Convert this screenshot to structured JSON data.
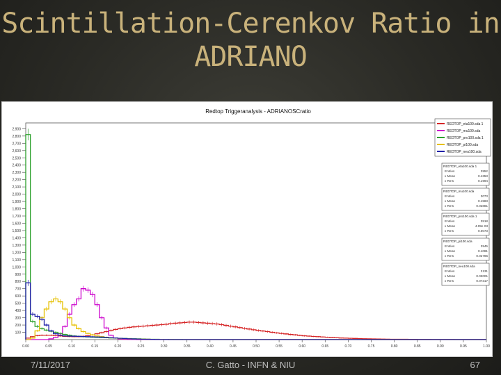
{
  "slide": {
    "title_line1": "Scintillation-Cerenkov Ratio in",
    "title_line2": "ADRIANO",
    "footer_date": "7/11/2017",
    "footer_author": "C. Gatto - INFN & NIU",
    "page_number": "67"
  },
  "chart_data": {
    "type": "line",
    "title": "Redtop Triggeranalysis - ADRIANOSCratio",
    "xlim": [
      0,
      1.0
    ],
    "ylim": [
      0,
      2980
    ],
    "x_ticks": [
      "0.00",
      "0.05",
      "0.10",
      "0.15",
      "0.20",
      "0.25",
      "0.30",
      "0.35",
      "0.40",
      "0.45",
      "0.50",
      "0.55",
      "0.60",
      "0.65",
      "0.70",
      "0.75",
      "0.80",
      "0.85",
      "0.90",
      "0.95",
      "1.00"
    ],
    "y_ticks": [
      "100",
      "200",
      "300",
      "400",
      "500",
      "600",
      "700",
      "800",
      "900",
      "1,000",
      "1,100",
      "1,200",
      "1,300",
      "1,400",
      "1,500",
      "1,600",
      "1,700",
      "1,800",
      "1,900",
      "2,000",
      "2,100",
      "2,200",
      "2,300",
      "2,400",
      "2,500",
      "2,600",
      "2,700",
      "2,800",
      "2,900"
    ],
    "x": [
      0.005,
      0.015,
      0.025,
      0.035,
      0.045,
      0.055,
      0.065,
      0.075,
      0.085,
      0.095,
      0.105,
      0.115,
      0.125,
      0.135,
      0.145,
      0.155,
      0.165,
      0.175,
      0.185,
      0.195,
      0.205,
      0.215,
      0.225,
      0.235,
      0.245,
      0.255,
      0.265,
      0.275,
      0.285,
      0.295,
      0.305,
      0.315,
      0.325,
      0.335,
      0.345,
      0.355,
      0.365,
      0.375,
      0.385,
      0.395,
      0.405,
      0.415,
      0.425,
      0.435,
      0.445,
      0.455,
      0.465,
      0.475,
      0.485,
      0.495,
      0.505,
      0.515,
      0.525,
      0.535,
      0.545,
      0.555,
      0.565,
      0.575,
      0.585,
      0.595,
      0.605,
      0.615,
      0.625,
      0.635,
      0.645,
      0.655,
      0.665,
      0.675,
      0.685,
      0.695,
      0.705,
      0.715,
      0.725,
      0.735,
      0.745,
      0.755,
      0.765,
      0.775,
      0.785,
      0.795,
      0.805,
      0.815,
      0.825,
      0.835,
      0.845,
      0.855,
      0.865,
      0.875,
      0.885,
      0.895,
      0.905,
      0.915,
      0.925,
      0.935,
      0.945,
      0.955,
      0.965,
      0.975,
      0.985,
      0.995
    ],
    "series": [
      {
        "name": "REDTOP_eta100.sda 1",
        "color": "#d62728",
        "values": [
          20,
          40,
          55,
          60,
          60,
          60,
          55,
          50,
          45,
          42,
          40,
          40,
          45,
          55,
          65,
          80,
          95,
          110,
          125,
          140,
          150,
          160,
          168,
          175,
          180,
          185,
          190,
          195,
          200,
          205,
          210,
          220,
          225,
          230,
          235,
          240,
          240,
          235,
          230,
          225,
          220,
          215,
          205,
          195,
          185,
          175,
          165,
          155,
          145,
          135,
          125,
          118,
          110,
          100,
          92,
          85,
          78,
          70,
          65,
          58,
          52,
          48,
          43,
          40,
          36,
          32,
          28,
          25,
          22,
          20,
          18,
          16,
          14,
          12,
          10,
          9,
          8,
          7,
          6,
          5,
          5,
          4,
          4,
          3,
          3,
          2,
          2,
          2,
          1,
          1,
          1,
          1,
          1,
          0,
          0,
          0,
          0,
          0,
          0,
          0
        ]
      },
      {
        "name": "REDTOP_mu100.sda",
        "color": "#cc00cc",
        "values": [
          0,
          0,
          0,
          0,
          0,
          10,
          30,
          80,
          180,
          350,
          480,
          560,
          700,
          680,
          620,
          480,
          300,
          160,
          60,
          20,
          8,
          4,
          2,
          1,
          0,
          0,
          0,
          0,
          0,
          0,
          0,
          0,
          0,
          0,
          0,
          0,
          0,
          0,
          0,
          0,
          0,
          0,
          0,
          0,
          0,
          0,
          0,
          0,
          0,
          0,
          0,
          0,
          0,
          0,
          0,
          0,
          0,
          0,
          0,
          0,
          0,
          0,
          0,
          0,
          0,
          0,
          0,
          0,
          0,
          0,
          0,
          0,
          0,
          0,
          0,
          0,
          0,
          0,
          0,
          0,
          0,
          0,
          0,
          0,
          0,
          0,
          0,
          0,
          0,
          0,
          0,
          0,
          0,
          0,
          0,
          0,
          0,
          0,
          0,
          0
        ]
      },
      {
        "name": "REDTOP_pro100.sda 1",
        "color": "#2ca02c",
        "values": [
          2820,
          250,
          180,
          150,
          130,
          115,
          100,
          85,
          70,
          60,
          50,
          45,
          40,
          36,
          33,
          30,
          28,
          25,
          22,
          20,
          18,
          16,
          14,
          12,
          10,
          8,
          6,
          5,
          4,
          3,
          2,
          2,
          1,
          1,
          0,
          0,
          0,
          0,
          0,
          0,
          0,
          0,
          0,
          0,
          0,
          0,
          0,
          0,
          0,
          0,
          0,
          0,
          0,
          0,
          0,
          0,
          0,
          0,
          0,
          0,
          0,
          0,
          0,
          0,
          0,
          0,
          0,
          0,
          0,
          0,
          0,
          0,
          0,
          0,
          0,
          0,
          0,
          0,
          0,
          0,
          0,
          0,
          0,
          0,
          0,
          0,
          0,
          0,
          0,
          0,
          0,
          0,
          0,
          0,
          0,
          0,
          0,
          0,
          0,
          0
        ]
      },
      {
        "name": "REDTOP_pi100.sda",
        "color": "#e6c000",
        "values": [
          0,
          20,
          120,
          300,
          420,
          520,
          560,
          520,
          420,
          300,
          200,
          150,
          110,
          85,
          65,
          50,
          40,
          32,
          25,
          20,
          16,
          13,
          10,
          8,
          6,
          5,
          4,
          3,
          2,
          2,
          1,
          1,
          0,
          0,
          0,
          0,
          0,
          0,
          0,
          0,
          0,
          0,
          0,
          0,
          0,
          0,
          0,
          0,
          0,
          0,
          0,
          0,
          0,
          0,
          0,
          0,
          0,
          0,
          0,
          0,
          0,
          0,
          0,
          0,
          0,
          0,
          0,
          0,
          0,
          0,
          0,
          0,
          0,
          0,
          0,
          0,
          0,
          0,
          0,
          0,
          0,
          0,
          0,
          0,
          0,
          0,
          0,
          0,
          0,
          0,
          0,
          0,
          0,
          0,
          0,
          0,
          0,
          0,
          0,
          0
        ]
      },
      {
        "name": "REDTOP_neu100.sda",
        "color": "#1f1fa8",
        "values": [
          780,
          350,
          320,
          280,
          200,
          120,
          80,
          60,
          50,
          48,
          46,
          44,
          42,
          40,
          38,
          36,
          34,
          30,
          26,
          22,
          18,
          14,
          11,
          9,
          7,
          5,
          4,
          3,
          2,
          1,
          1,
          0,
          0,
          0,
          0,
          0,
          0,
          0,
          0,
          0,
          0,
          0,
          0,
          0,
          0,
          0,
          0,
          0,
          0,
          0,
          0,
          0,
          0,
          0,
          0,
          0,
          0,
          0,
          0,
          0,
          0,
          0,
          0,
          0,
          0,
          0,
          0,
          0,
          0,
          0,
          0,
          0,
          0,
          0,
          0,
          0,
          0,
          0,
          0,
          0,
          0,
          0,
          0,
          0,
          0,
          0,
          0,
          0,
          0,
          0,
          0,
          0,
          0,
          0,
          0,
          0,
          0,
          0,
          0,
          0
        ]
      }
    ],
    "stats_boxes": [
      {
        "name": "REDTOP_eta100.sda 1",
        "rows": [
          [
            "Entries",
            "3952"
          ],
          [
            "x Mean",
            "0.4353"
          ],
          [
            "x Rms",
            "0.1994"
          ]
        ]
      },
      {
        "name": "REDTOP_mu100.sda",
        "rows": [
          [
            "Entries",
            "3073"
          ],
          [
            "x Mean",
            "0.1583"
          ],
          [
            "x Rms",
            "0.02881"
          ]
        ]
      },
      {
        "name": "REDTOP_pro100.sda 1",
        "rows": [
          [
            "Entries",
            "3518"
          ],
          [
            "x Mean",
            "4.09e-03"
          ],
          [
            "x Rms",
            "0.0073"
          ]
        ]
      },
      {
        "name": "REDTOP_pi100.sda",
        "rows": [
          [
            "Entries",
            "3945"
          ],
          [
            "x Mean",
            "0.1081"
          ],
          [
            "x Rms",
            "0.02785"
          ]
        ]
      },
      {
        "name": "REDTOP_neu100.sda",
        "rows": [
          [
            "Entries",
            "3131"
          ],
          [
            "x Mean",
            "0.03001"
          ],
          [
            "x Rms",
            "0.07317"
          ]
        ]
      }
    ],
    "legend_position": "top-right",
    "grid": false
  }
}
